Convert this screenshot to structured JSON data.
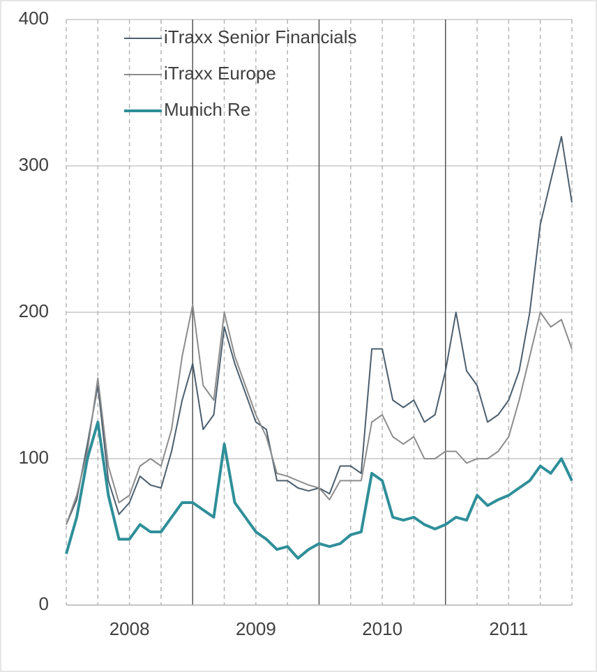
{
  "chart_data": {
    "type": "line",
    "x": [
      2008,
      2008.083,
      2008.167,
      2008.25,
      2008.333,
      2008.417,
      2008.5,
      2008.583,
      2008.667,
      2008.75,
      2008.833,
      2008.917,
      2009,
      2009.083,
      2009.167,
      2009.25,
      2009.333,
      2009.417,
      2009.5,
      2009.583,
      2009.667,
      2009.75,
      2009.833,
      2009.917,
      2010,
      2010.083,
      2010.167,
      2010.25,
      2010.333,
      2010.417,
      2010.5,
      2010.583,
      2010.667,
      2010.75,
      2010.833,
      2010.917,
      2011,
      2011.083,
      2011.167,
      2011.25,
      2011.333,
      2011.417,
      2011.5,
      2011.583,
      2011.667,
      2011.75,
      2011.833,
      2011.917,
      2012
    ],
    "series": [
      {
        "name": "iTraxx Senior Financials",
        "color": "#4a5e6e",
        "width": 2,
        "values": [
          55,
          72,
          110,
          150,
          85,
          62,
          70,
          88,
          82,
          80,
          105,
          140,
          165,
          120,
          130,
          190,
          165,
          145,
          125,
          120,
          85,
          85,
          80,
          78,
          80,
          76,
          95,
          95,
          90,
          175,
          175,
          140,
          135,
          140,
          125,
          130,
          160,
          200,
          160,
          150,
          125,
          130,
          140,
          160,
          200,
          260,
          290,
          320,
          275
        ]
      },
      {
        "name": "iTraxx Europe",
        "color": "#8c8c8c",
        "width": 2,
        "values": [
          55,
          75,
          105,
          155,
          95,
          70,
          75,
          95,
          100,
          95,
          120,
          170,
          205,
          150,
          140,
          200,
          170,
          150,
          130,
          115,
          90,
          88,
          85,
          82,
          80,
          72,
          85,
          85,
          85,
          125,
          130,
          115,
          110,
          115,
          100,
          100,
          105,
          105,
          97,
          100,
          100,
          105,
          115,
          140,
          170,
          200,
          190,
          195,
          175
        ]
      },
      {
        "name": "Munich Re",
        "color": "#2e8f99",
        "width": 4,
        "values": [
          35,
          60,
          100,
          125,
          75,
          45,
          45,
          55,
          50,
          50,
          60,
          70,
          70,
          65,
          60,
          110,
          70,
          60,
          50,
          45,
          38,
          40,
          32,
          38,
          42,
          40,
          42,
          48,
          50,
          90,
          85,
          60,
          58,
          60,
          55,
          52,
          55,
          60,
          58,
          75,
          68,
          72,
          75,
          80,
          85,
          95,
          90,
          100,
          85
        ]
      }
    ],
    "xlim": [
      2008,
      2012
    ],
    "xticks": [
      {
        "value": 2008.5,
        "label": "2008"
      },
      {
        "value": 2009.5,
        "label": "2009"
      },
      {
        "value": 2010.5,
        "label": "2010"
      },
      {
        "value": 2011.5,
        "label": "2011"
      }
    ],
    "ylim": [
      0,
      400
    ],
    "yticks": [
      0,
      100,
      200,
      300,
      400
    ],
    "grid": true
  }
}
